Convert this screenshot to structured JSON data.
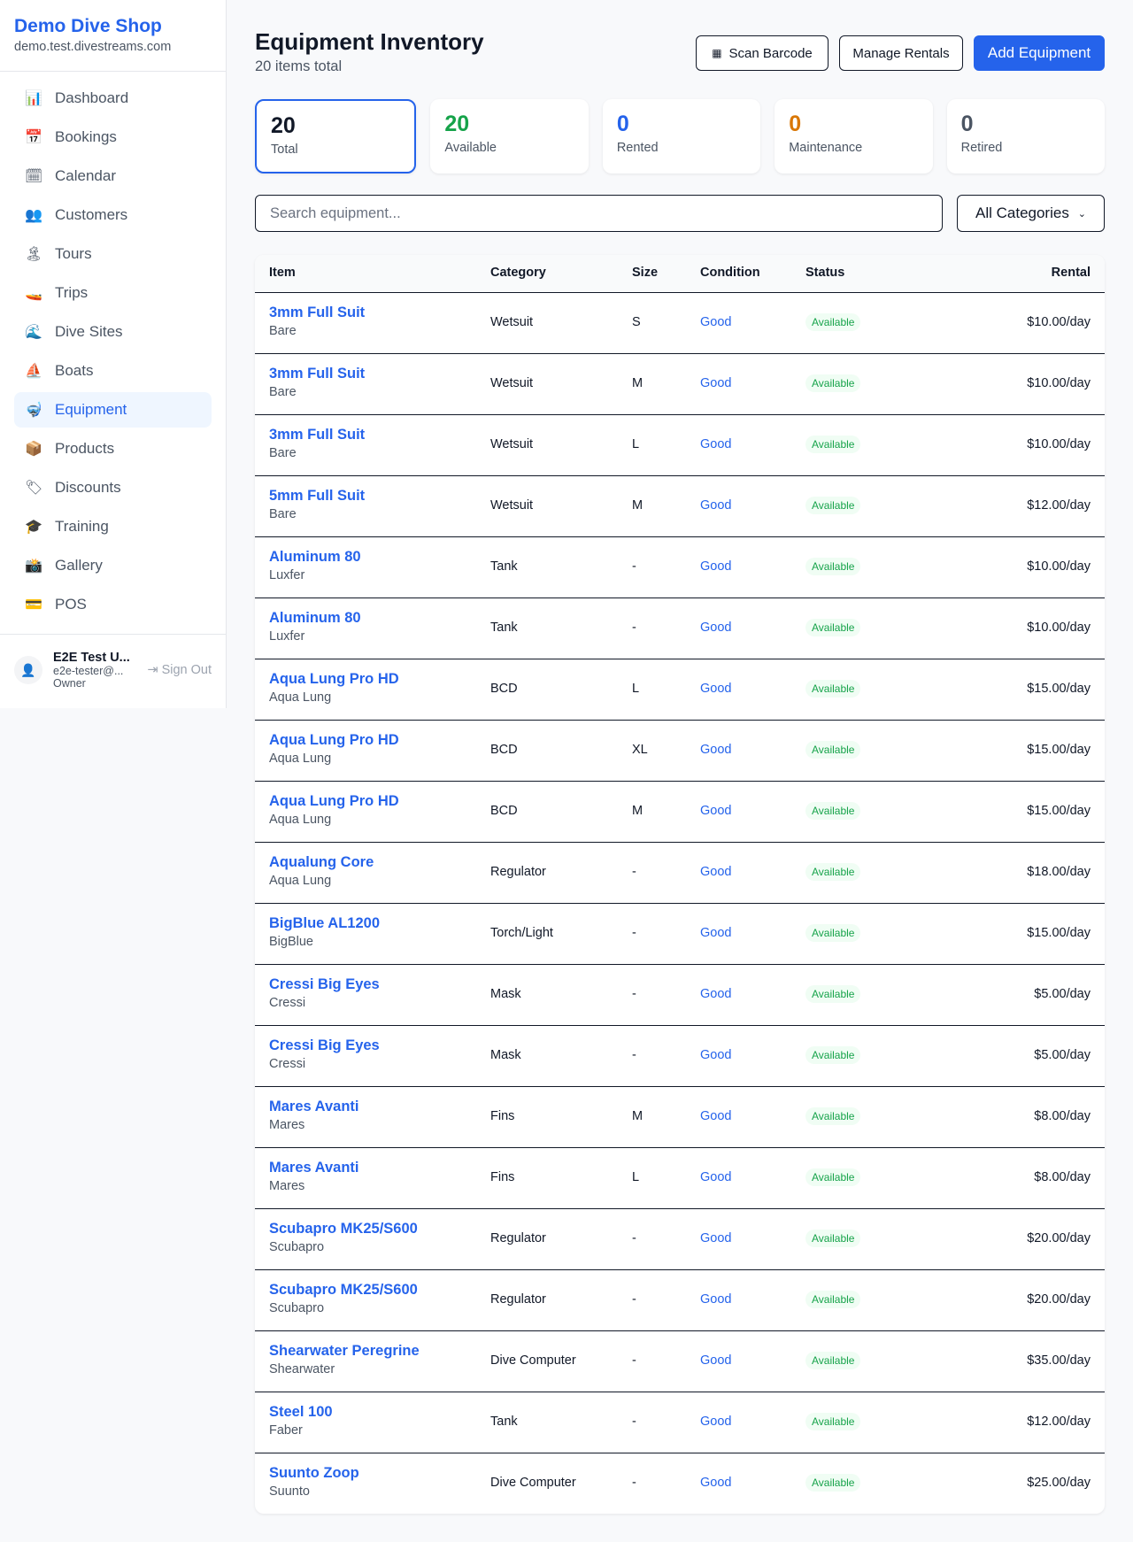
{
  "sidebar": {
    "brand": "Demo Dive Shop",
    "domain": "demo.test.divestreams.com",
    "items": [
      {
        "label": "Dashboard",
        "icon": "📊"
      },
      {
        "label": "Bookings",
        "icon": "📅"
      },
      {
        "label": "Calendar",
        "icon": "🗓"
      },
      {
        "label": "Customers",
        "icon": "👥"
      },
      {
        "label": "Tours",
        "icon": "🏝"
      },
      {
        "label": "Trips",
        "icon": "🚤"
      },
      {
        "label": "Dive Sites",
        "icon": "🌊"
      },
      {
        "label": "Boats",
        "icon": "⛵"
      },
      {
        "label": "Equipment",
        "icon": "🤿"
      },
      {
        "label": "Products",
        "icon": "📦"
      },
      {
        "label": "Discounts",
        "icon": "🏷"
      },
      {
        "label": "Training",
        "icon": "🎓"
      },
      {
        "label": "Gallery",
        "icon": "📸"
      },
      {
        "label": "POS",
        "icon": "💳"
      }
    ],
    "active": "Equipment",
    "user": {
      "name": "E2E Test U...",
      "email": "e2e-tester@...",
      "role": "Owner",
      "sign_out": "Sign Out"
    }
  },
  "header": {
    "title": "Equipment Inventory",
    "subtitle": "20 items total",
    "scan": "Scan Barcode",
    "manage": "Manage Rentals",
    "add": "Add Equipment"
  },
  "stats": [
    {
      "value": "20",
      "label": "Total",
      "color": "#111827"
    },
    {
      "value": "20",
      "label": "Available",
      "color": "#16a34a"
    },
    {
      "value": "0",
      "label": "Rented",
      "color": "#2563eb"
    },
    {
      "value": "0",
      "label": "Maintenance",
      "color": "#d97706"
    },
    {
      "value": "0",
      "label": "Retired",
      "color": "#4b5563"
    }
  ],
  "filters": {
    "search_placeholder": "Search equipment...",
    "category": "All Categories"
  },
  "table": {
    "columns": [
      "Item",
      "Category",
      "Size",
      "Condition",
      "Status",
      "Rental"
    ],
    "rows": [
      [
        "3mm Full Suit",
        "Bare",
        "Wetsuit",
        "S",
        "Good",
        "Available",
        "$10.00/day"
      ],
      [
        "3mm Full Suit",
        "Bare",
        "Wetsuit",
        "M",
        "Good",
        "Available",
        "$10.00/day"
      ],
      [
        "3mm Full Suit",
        "Bare",
        "Wetsuit",
        "L",
        "Good",
        "Available",
        "$10.00/day"
      ],
      [
        "5mm Full Suit",
        "Bare",
        "Wetsuit",
        "M",
        "Good",
        "Available",
        "$12.00/day"
      ],
      [
        "Aluminum 80",
        "Luxfer",
        "Tank",
        "-",
        "Good",
        "Available",
        "$10.00/day"
      ],
      [
        "Aluminum 80",
        "Luxfer",
        "Tank",
        "-",
        "Good",
        "Available",
        "$10.00/day"
      ],
      [
        "Aqua Lung Pro HD",
        "Aqua Lung",
        "BCD",
        "L",
        "Good",
        "Available",
        "$15.00/day"
      ],
      [
        "Aqua Lung Pro HD",
        "Aqua Lung",
        "BCD",
        "XL",
        "Good",
        "Available",
        "$15.00/day"
      ],
      [
        "Aqua Lung Pro HD",
        "Aqua Lung",
        "BCD",
        "M",
        "Good",
        "Available",
        "$15.00/day"
      ],
      [
        "Aqualung Core",
        "Aqua Lung",
        "Regulator",
        "-",
        "Good",
        "Available",
        "$18.00/day"
      ],
      [
        "BigBlue AL1200",
        "BigBlue",
        "Torch/Light",
        "-",
        "Good",
        "Available",
        "$15.00/day"
      ],
      [
        "Cressi Big Eyes",
        "Cressi",
        "Mask",
        "-",
        "Good",
        "Available",
        "$5.00/day"
      ],
      [
        "Cressi Big Eyes",
        "Cressi",
        "Mask",
        "-",
        "Good",
        "Available",
        "$5.00/day"
      ],
      [
        "Mares Avanti",
        "Mares",
        "Fins",
        "M",
        "Good",
        "Available",
        "$8.00/day"
      ],
      [
        "Mares Avanti",
        "Mares",
        "Fins",
        "L",
        "Good",
        "Available",
        "$8.00/day"
      ],
      [
        "Scubapro MK25/S600",
        "Scubapro",
        "Regulator",
        "-",
        "Good",
        "Available",
        "$20.00/day"
      ],
      [
        "Scubapro MK25/S600",
        "Scubapro",
        "Regulator",
        "-",
        "Good",
        "Available",
        "$20.00/day"
      ],
      [
        "Shearwater Peregrine",
        "Shearwater",
        "Dive Computer",
        "-",
        "Good",
        "Available",
        "$35.00/day"
      ],
      [
        "Steel 100",
        "Faber",
        "Tank",
        "-",
        "Good",
        "Available",
        "$12.00/day"
      ],
      [
        "Suunto Zoop",
        "Suunto",
        "Dive Computer",
        "-",
        "Good",
        "Available",
        "$25.00/day"
      ]
    ]
  }
}
